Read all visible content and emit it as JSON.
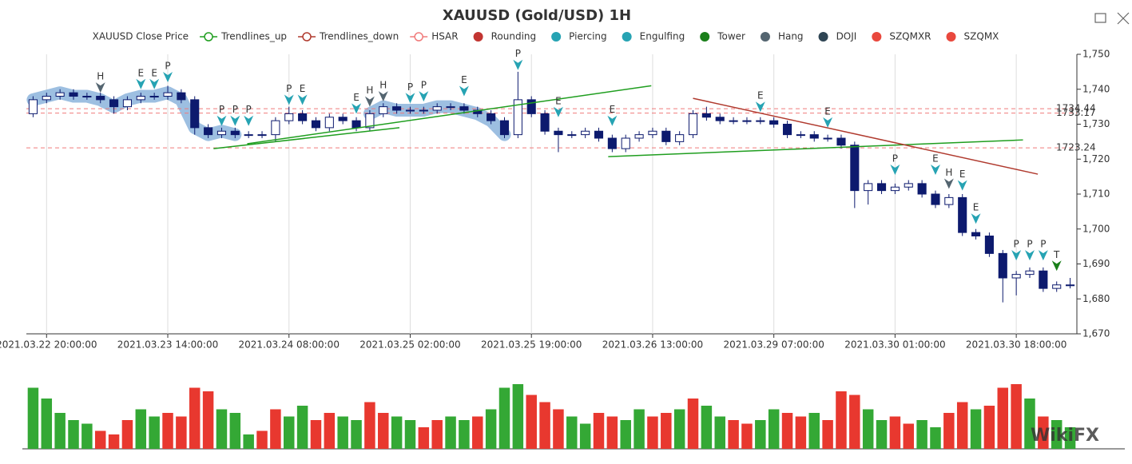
{
  "chart_data": {
    "type": "candlestick",
    "title": "XAUUSD (Gold/USD) 1H",
    "watermark": "WikiFX",
    "legend": [
      {
        "name": "XAUUSD Close Price",
        "color": "#333333",
        "symbol": "none"
      },
      {
        "name": "Trendlines_up",
        "color": "#1f9e1f",
        "symbol": "line"
      },
      {
        "name": "Trendlines_down",
        "color": "#b03a2e",
        "symbol": "line"
      },
      {
        "name": "HSAR",
        "color": "#f07b7b",
        "symbol": "line"
      },
      {
        "name": "Rounding",
        "color": "#c23531",
        "symbol": "circle"
      },
      {
        "name": "Piercing",
        "color": "#26a3b3",
        "symbol": "circle"
      },
      {
        "name": "Engulfing",
        "color": "#26a3b3",
        "symbol": "circle"
      },
      {
        "name": "Tower",
        "color": "#1a7f1a",
        "symbol": "circle"
      },
      {
        "name": "Hang",
        "color": "#546570",
        "symbol": "circle"
      },
      {
        "name": "DOJI",
        "color": "#2f4554",
        "symbol": "circle"
      },
      {
        "name": "SZQMXR",
        "color": "#e9483d",
        "symbol": "circle"
      },
      {
        "name": "SZQMX",
        "color": "#e9483d",
        "symbol": "circle"
      }
    ],
    "categories": [
      null,
      "2021.03.22 20:00:00",
      null,
      null,
      null,
      null,
      null,
      null,
      null,
      null,
      "2021.03.23 14:00:00",
      null,
      null,
      null,
      null,
      null,
      null,
      null,
      null,
      "2021.03.24 08:00:00",
      null,
      null,
      null,
      null,
      null,
      null,
      null,
      null,
      "2021.03.25 02:00:00",
      null,
      null,
      null,
      null,
      null,
      null,
      null,
      null,
      "2021.03.25 19:00:00",
      null,
      null,
      null,
      null,
      null,
      null,
      null,
      null,
      "2021.03.26 13:00:00",
      null,
      null,
      null,
      null,
      null,
      null,
      null,
      null,
      "2021.03.29 07:00:00",
      null,
      null,
      null,
      null,
      null,
      null,
      null,
      null,
      "2021.03.30 01:00:00",
      null,
      null,
      null,
      null,
      null,
      null,
      null,
      null,
      "2021.03.30 18:00:00",
      null,
      null,
      null,
      null
    ],
    "ohlc": {
      "open": [
        1733,
        1737,
        1738,
        1739,
        1738,
        1738,
        1737,
        1735,
        1737,
        1738,
        1738,
        1739,
        1737,
        1729,
        1727,
        1728,
        1727,
        1727,
        1727,
        1731,
        1733,
        1731,
        1729,
        1732,
        1731,
        1729,
        1733,
        1735,
        1734,
        1734,
        1734,
        1735,
        1735,
        1734,
        1733,
        1731,
        1727,
        1737,
        1733,
        1728,
        1727,
        1727,
        1728,
        1726,
        1723,
        1726,
        1727,
        1728,
        1725,
        1727,
        1733,
        1732,
        1731,
        1731,
        1731,
        1731,
        1730,
        1727,
        1727,
        1726,
        1726,
        1724,
        1711,
        1713,
        1711,
        1712,
        1713,
        1710,
        1707,
        1709,
        1699,
        1698,
        1693,
        1686,
        1687,
        1688,
        1683,
        1684
      ],
      "high": [
        1738,
        1739,
        1740,
        1740,
        1739,
        1739,
        1738,
        1738,
        1739,
        1739,
        1741,
        1740,
        1738,
        1730,
        1729,
        1729,
        1728,
        1728,
        1732,
        1735,
        1734,
        1732,
        1733,
        1733,
        1732,
        1734,
        1736,
        1736,
        1735,
        1735,
        1736,
        1736,
        1736,
        1735,
        1734,
        1732,
        1745,
        1738,
        1734,
        1729,
        1728,
        1729,
        1729,
        1727,
        1727,
        1728,
        1729,
        1729,
        1728,
        1734,
        1735,
        1733,
        1732,
        1732,
        1732,
        1732,
        1731,
        1728,
        1728,
        1727,
        1727,
        1725,
        1714,
        1714,
        1713,
        1714,
        1714,
        1711,
        1710,
        1710,
        1700,
        1699,
        1694,
        1688,
        1689,
        1689,
        1685,
        1686
      ],
      "low": [
        1732,
        1736,
        1737,
        1737,
        1737,
        1736,
        1733,
        1734,
        1736,
        1737,
        1737,
        1736,
        1727,
        1726,
        1726,
        1726,
        1726,
        1726,
        1725,
        1730,
        1730,
        1728,
        1728,
        1730,
        1728,
        1728,
        1732,
        1733,
        1733,
        1733,
        1733,
        1734,
        1733,
        1732,
        1730,
        1726,
        1726,
        1732,
        1727,
        1722,
        1726,
        1726,
        1725,
        1722,
        1722,
        1725,
        1726,
        1724,
        1724,
        1726,
        1731,
        1730,
        1730,
        1730,
        1730,
        1729,
        1726,
        1726,
        1725,
        1725,
        1723,
        1706,
        1707,
        1710,
        1710,
        1711,
        1709,
        1706,
        1706,
        1698,
        1697,
        1692,
        1679,
        1681,
        1686,
        1682,
        1682,
        1683
      ],
      "close": [
        1737,
        1738,
        1739,
        1738,
        1738,
        1737,
        1735,
        1737,
        1738,
        1738,
        1739,
        1737,
        1729,
        1727,
        1728,
        1727,
        1727,
        1727,
        1731,
        1733,
        1731,
        1729,
        1732,
        1731,
        1729,
        1733,
        1735,
        1734,
        1734,
        1734,
        1735,
        1735,
        1734,
        1733,
        1731,
        1727,
        1737,
        1733,
        1728,
        1727,
        1727,
        1728,
        1726,
        1723,
        1726,
        1727,
        1728,
        1725,
        1727,
        1733,
        1732,
        1731,
        1731,
        1731,
        1731,
        1730,
        1727,
        1727,
        1726,
        1726,
        1724,
        1711,
        1713,
        1711,
        1712,
        1713,
        1710,
        1707,
        1709,
        1699,
        1698,
        1693,
        1686,
        1687,
        1688,
        1683,
        1684,
        1684
      ]
    },
    "up_color": "#ffffff",
    "down_color": "#0d1a6e",
    "border_color": "#0d1a6e",
    "ylim": [
      1670,
      1750
    ],
    "yticks": [
      {
        "value": 1670,
        "label": "1,670"
      },
      {
        "value": 1680,
        "label": "1,680"
      },
      {
        "value": 1690,
        "label": "1,690"
      },
      {
        "value": 1700,
        "label": "1,700"
      },
      {
        "value": 1710,
        "label": "1,710"
      },
      {
        "value": 1720,
        "label": "1,720"
      },
      {
        "value": 1730,
        "label": "1,730"
      },
      {
        "value": 1740,
        "label": "1,740"
      },
      {
        "value": 1750,
        "label": "1,750"
      }
    ],
    "trendlines_up": [
      {
        "x": [
          13.4,
          27.2
        ],
        "y": [
          1723,
          1729
        ]
      },
      {
        "x": [
          15.9,
          45.9
        ],
        "y": [
          1724.4,
          1741
        ]
      },
      {
        "x": [
          42.7,
          73.5
        ],
        "y": [
          1720.7,
          1725.5
        ]
      }
    ],
    "trendlines_down": [
      {
        "x": [
          49,
          74.6
        ],
        "y": [
          1737.4,
          1715.7
        ]
      }
    ],
    "hsar": [
      1734.44,
      1733.17,
      1723.24
    ],
    "rounding": [
      [
        0,
        15
      ],
      [
        25,
        35
      ]
    ],
    "rounding_color": "#8cb4dc",
    "signals": [
      {
        "label": "H",
        "series": "Hang",
        "index": 5,
        "value": 1739
      },
      {
        "label": "E",
        "series": "Engulfing",
        "index": 8,
        "value": 1740
      },
      {
        "label": "E",
        "series": "Engulfing",
        "index": 9,
        "value": 1740
      },
      {
        "label": "P",
        "series": "Piercing",
        "index": 10,
        "value": 1742
      },
      {
        "label": "P",
        "series": "Piercing",
        "index": 14,
        "value": 1729.5
      },
      {
        "label": "P",
        "series": "Piercing",
        "index": 15,
        "value": 1729.5
      },
      {
        "label": "P",
        "series": "Piercing",
        "index": 16,
        "value": 1729.5
      },
      {
        "label": "P",
        "series": "Piercing",
        "index": 19,
        "value": 1735.5
      },
      {
        "label": "E",
        "series": "Engulfing",
        "index": 20,
        "value": 1735.5
      },
      {
        "label": "E",
        "series": "Engulfing",
        "index": 24,
        "value": 1733
      },
      {
        "label": "H",
        "series": "Hang",
        "index": 25,
        "value": 1735
      },
      {
        "label": "H",
        "series": "Hang",
        "index": 26,
        "value": 1736.5
      },
      {
        "label": "P",
        "series": "Piercing",
        "index": 28,
        "value": 1736
      },
      {
        "label": "P",
        "series": "Piercing",
        "index": 29,
        "value": 1736.5
      },
      {
        "label": "E",
        "series": "Engulfing",
        "index": 32,
        "value": 1738
      },
      {
        "label": "P",
        "series": "Piercing",
        "index": 36,
        "value": 1745.5
      },
      {
        "label": "E",
        "series": "Engulfing",
        "index": 39,
        "value": 1732
      },
      {
        "label": "E",
        "series": "Engulfing",
        "index": 43,
        "value": 1729.5
      },
      {
        "label": "E",
        "series": "Engulfing",
        "index": 54,
        "value": 1733.5
      },
      {
        "label": "E",
        "series": "Engulfing",
        "index": 59,
        "value": 1729
      },
      {
        "label": "P",
        "series": "Piercing",
        "index": 64,
        "value": 1715.5
      },
      {
        "label": "E",
        "series": "Engulfing",
        "index": 67,
        "value": 1715.5
      },
      {
        "label": "H",
        "series": "Hang",
        "index": 68,
        "value": 1711.5
      },
      {
        "label": "E",
        "series": "Engulfing",
        "index": 69,
        "value": 1711
      },
      {
        "label": "E",
        "series": "Engulfing",
        "index": 70,
        "value": 1701.5
      },
      {
        "label": "P",
        "series": "Piercing",
        "index": 73,
        "value": 1691
      },
      {
        "label": "P",
        "series": "Piercing",
        "index": 74,
        "value": 1691
      },
      {
        "label": "P",
        "series": "Piercing",
        "index": 75,
        "value": 1691
      },
      {
        "label": "T",
        "series": "Tower",
        "index": 76,
        "value": 1688
      }
    ],
    "volume": {
      "ylim": [
        0,
        100
      ],
      "values": [
        85,
        70,
        50,
        40,
        35,
        25,
        20,
        40,
        55,
        45,
        50,
        45,
        85,
        80,
        55,
        50,
        20,
        25,
        55,
        45,
        60,
        40,
        50,
        45,
        40,
        65,
        50,
        45,
        40,
        30,
        40,
        45,
        40,
        45,
        55,
        85,
        90,
        75,
        65,
        55,
        45,
        35,
        50,
        45,
        40,
        55,
        45,
        50,
        55,
        70,
        60,
        45,
        40,
        35,
        40,
        55,
        50,
        45,
        50,
        40,
        80,
        75,
        55,
        40,
        45,
        35,
        40,
        30,
        50,
        65,
        55,
        60,
        85,
        90,
        70,
        45,
        40,
        30
      ],
      "colors": [
        "#34a835",
        "#34a835",
        "#34a835",
        "#34a835",
        "#34a835",
        "#e8382f",
        "#e8382f",
        "#e8382f",
        "#34a835",
        "#34a835",
        "#e8382f",
        "#e8382f",
        "#e8382f",
        "#e8382f",
        "#34a835",
        "#34a835",
        "#34a835",
        "#e8382f",
        "#e8382f",
        "#34a835",
        "#34a835",
        "#e8382f",
        "#e8382f",
        "#34a835",
        "#34a835",
        "#e8382f",
        "#e8382f",
        "#34a835",
        "#34a835",
        "#e8382f",
        "#e8382f",
        "#34a835",
        "#34a835",
        "#e8382f",
        "#34a835",
        "#34a835",
        "#34a835",
        "#e8382f",
        "#e8382f",
        "#e8382f",
        "#34a835",
        "#34a835",
        "#e8382f",
        "#e8382f",
        "#34a835",
        "#34a835",
        "#e8382f",
        "#e8382f",
        "#34a835",
        "#e8382f",
        "#34a835",
        "#34a835",
        "#e8382f",
        "#e8382f",
        "#34a835",
        "#34a835",
        "#e8382f",
        "#e8382f",
        "#34a835",
        "#e8382f",
        "#e8382f",
        "#e8382f",
        "#34a835",
        "#34a835",
        "#e8382f",
        "#e8382f",
        "#34a835",
        "#34a835",
        "#e8382f",
        "#e8382f",
        "#34a835",
        "#e8382f",
        "#e8382f",
        "#e8382f",
        "#34a835",
        "#e8382f",
        "#34a835",
        "#34a835"
      ]
    }
  }
}
